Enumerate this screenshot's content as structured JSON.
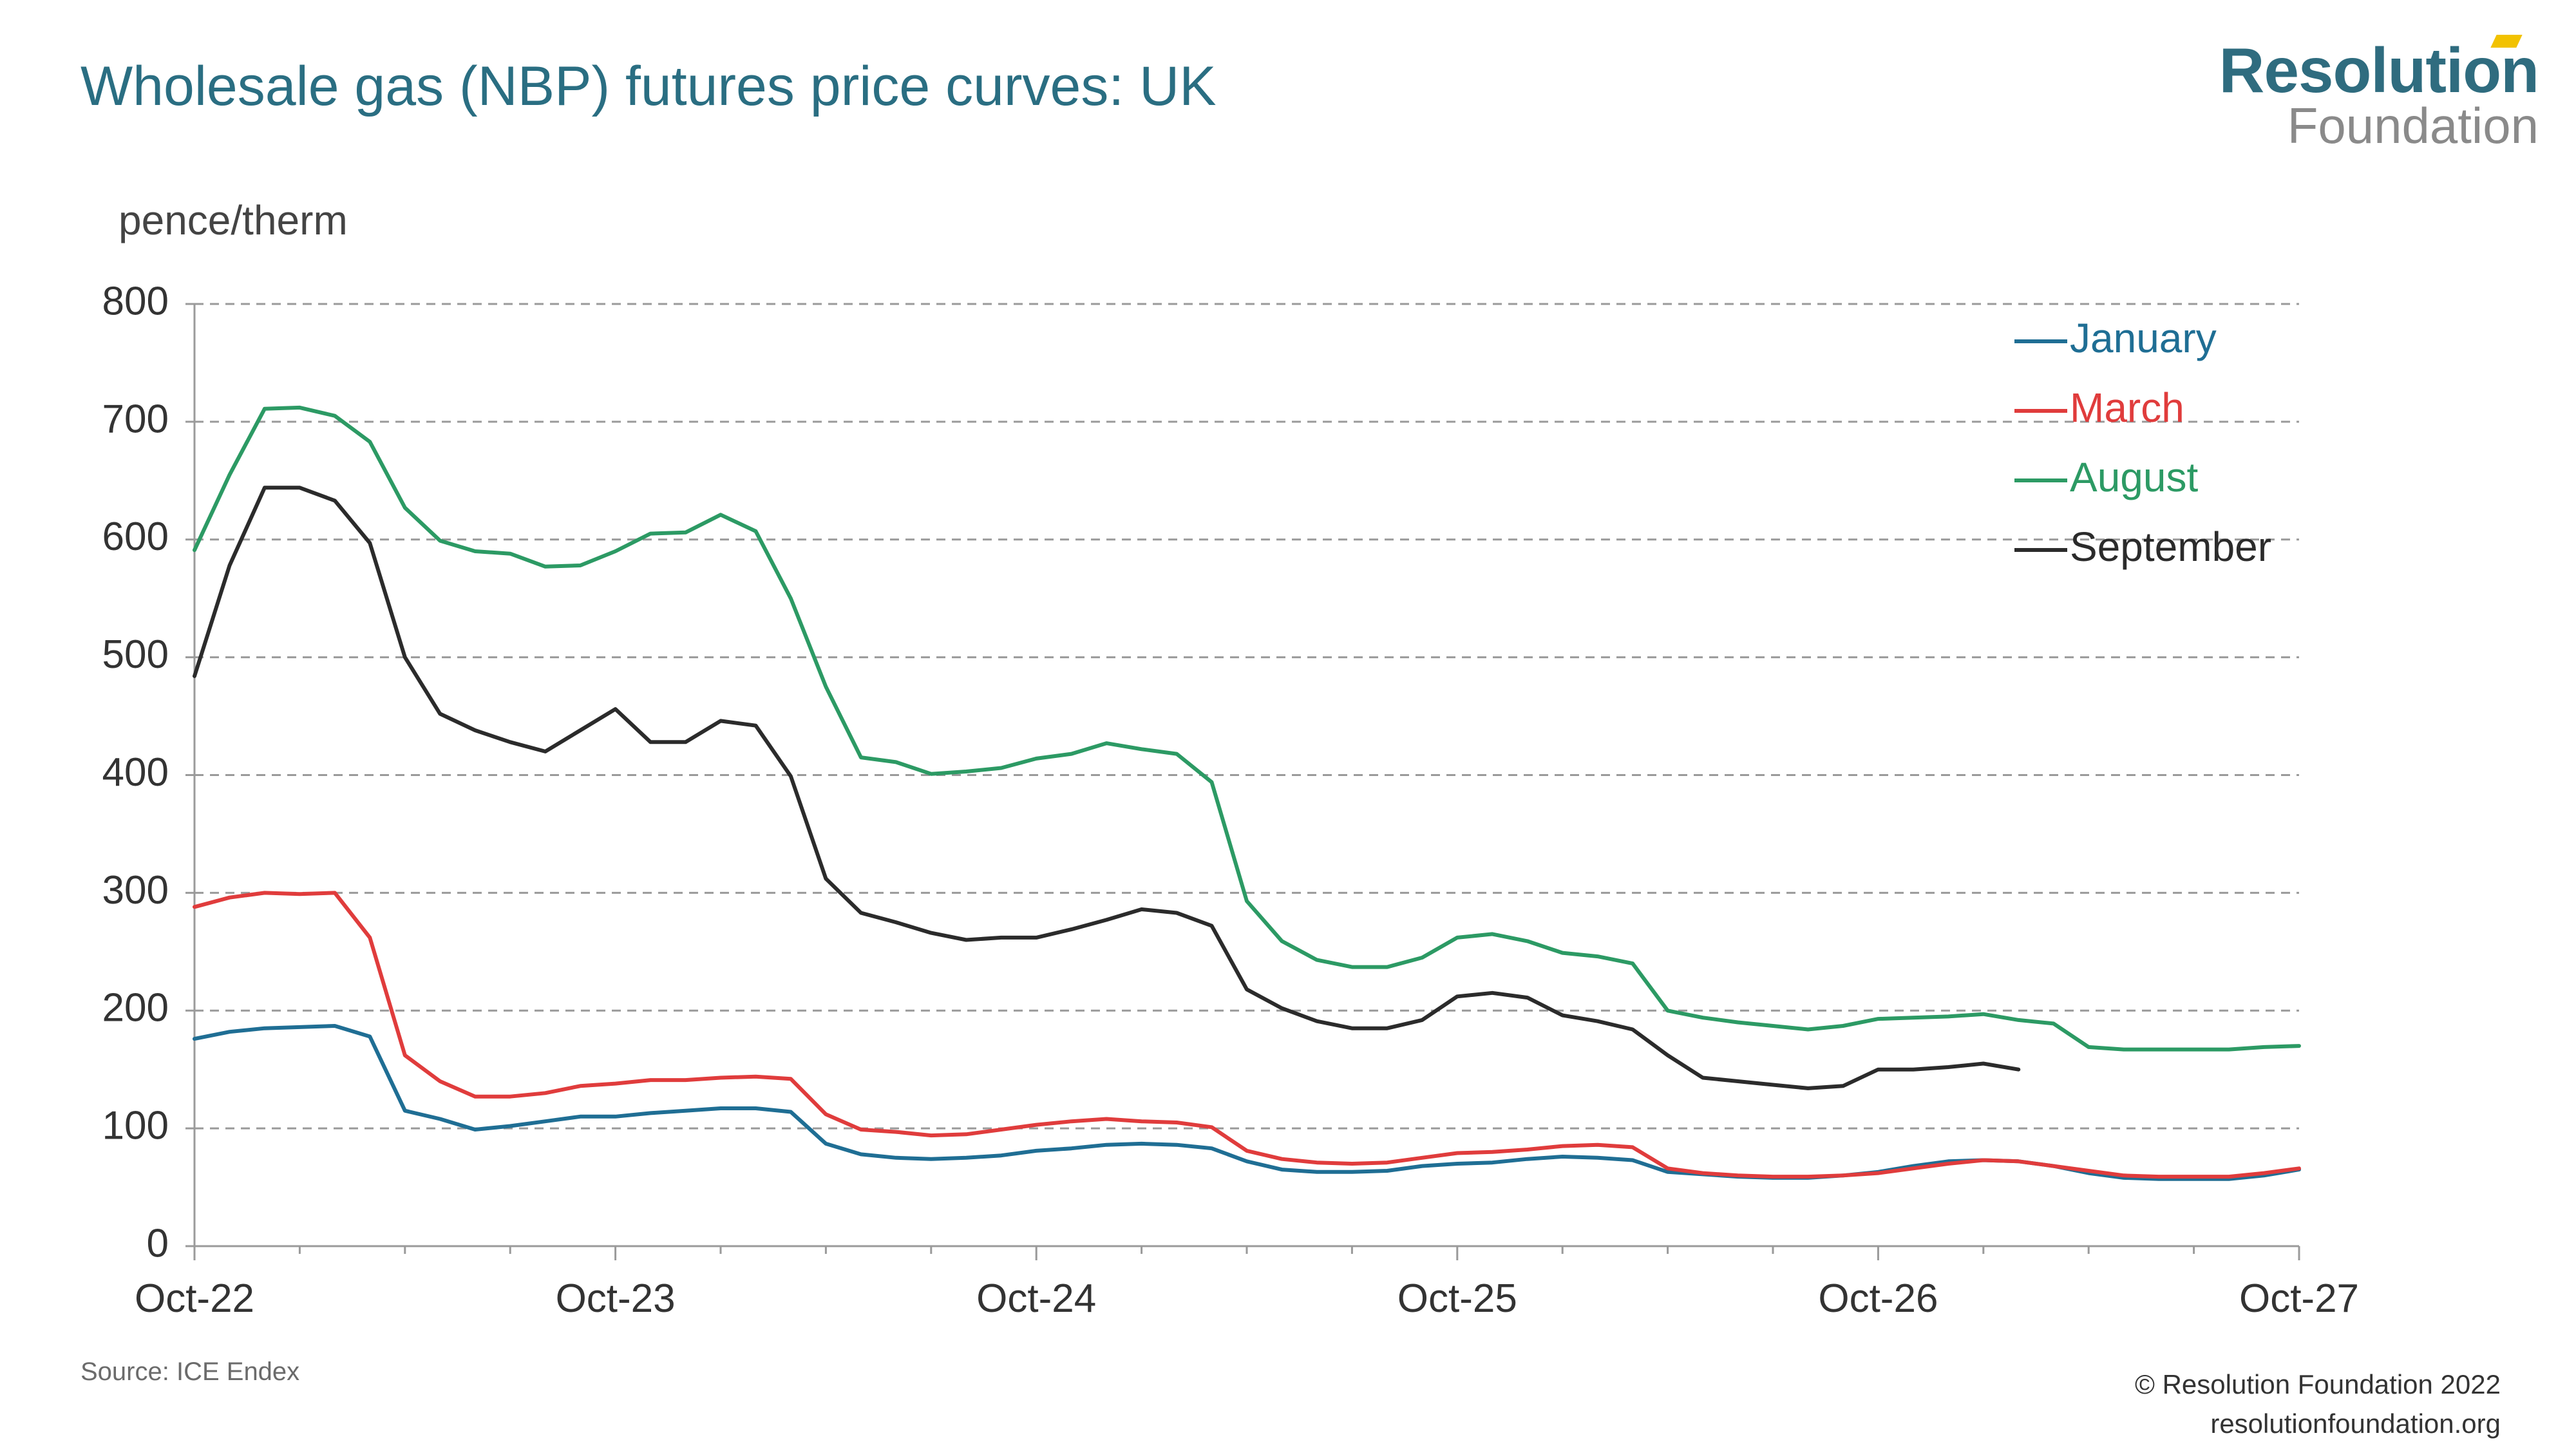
{
  "header": {
    "title": "Wholesale gas (NBP) futures price curves: UK",
    "logo_line1": "Resolution",
    "logo_line2": "Foundation"
  },
  "footer": {
    "source": "Source: ICE Endex",
    "copyright": "© Resolution Foundation 2022",
    "website": "resolutionfoundation.org"
  },
  "chart_data": {
    "type": "line",
    "ylabel": "pence/therm",
    "ylim": [
      0,
      800
    ],
    "yticks": [
      0,
      100,
      200,
      300,
      400,
      500,
      600,
      700,
      800
    ],
    "xticks": [
      "Oct-22",
      "Oct-23",
      "Oct-24",
      "Oct-25",
      "Oct-26",
      "Oct-27"
    ],
    "x_unit": "months from Oct-22",
    "xlim": [
      0,
      60
    ],
    "grid": true,
    "legend_position": "top-right",
    "series": [
      {
        "name": "January",
        "color": "#1f6e94",
        "x": [
          0,
          1,
          2,
          3,
          4,
          5,
          6,
          7,
          8,
          9,
          10,
          11,
          12,
          13,
          14,
          15,
          16,
          17,
          18,
          19,
          20,
          21,
          22,
          23,
          24,
          25,
          26,
          27,
          28,
          29,
          30,
          31,
          32,
          33,
          34,
          35,
          36,
          37,
          38,
          39,
          40,
          41,
          42,
          43,
          44,
          45,
          46,
          47,
          48,
          49,
          50,
          51,
          52,
          53,
          54,
          55,
          56,
          57,
          58,
          59,
          60
        ],
        "values": [
          176,
          182,
          185,
          186,
          187,
          178,
          115,
          108,
          99,
          102,
          106,
          110,
          110,
          113,
          115,
          117,
          117,
          114,
          87,
          78,
          75,
          74,
          75,
          77,
          81,
          83,
          86,
          87,
          86,
          83,
          72,
          65,
          63,
          63,
          64,
          68,
          70,
          71,
          74,
          76,
          75,
          73,
          63,
          61,
          59,
          58,
          58,
          60,
          63,
          68,
          72,
          73,
          72,
          68,
          62,
          58,
          57,
          57,
          57,
          60,
          65
        ]
      },
      {
        "name": "March",
        "color": "#e03c3c",
        "x": [
          0,
          1,
          2,
          3,
          4,
          5,
          6,
          7,
          8,
          9,
          10,
          11,
          12,
          13,
          14,
          15,
          16,
          17,
          18,
          19,
          20,
          21,
          22,
          23,
          24,
          25,
          26,
          27,
          28,
          29,
          30,
          31,
          32,
          33,
          34,
          35,
          36,
          37,
          38,
          39,
          40,
          41,
          42,
          43,
          44,
          45,
          46,
          47,
          48,
          49,
          50,
          51,
          52,
          53,
          54,
          55,
          56,
          57,
          58,
          59,
          60
        ],
        "values": [
          288,
          296,
          300,
          299,
          300,
          262,
          162,
          140,
          127,
          127,
          130,
          136,
          138,
          141,
          141,
          143,
          144,
          142,
          112,
          99,
          97,
          94,
          95,
          99,
          103,
          106,
          108,
          106,
          105,
          101,
          81,
          74,
          71,
          70,
          71,
          75,
          79,
          80,
          82,
          85,
          86,
          84,
          66,
          62,
          60,
          59,
          59,
          60,
          62,
          66,
          70,
          73,
          72,
          68,
          64,
          60,
          59,
          59,
          59,
          62,
          66
        ]
      },
      {
        "name": "August",
        "color": "#2c9a64",
        "x": [
          0,
          1,
          2,
          3,
          4,
          5,
          6,
          7,
          8,
          9,
          10,
          11,
          12,
          13,
          14,
          15,
          16,
          17,
          18,
          19,
          20,
          21,
          22,
          23,
          24,
          25,
          26,
          27,
          28,
          29,
          30,
          31,
          32,
          33,
          34,
          35,
          36,
          37,
          38,
          39,
          40,
          41,
          42,
          43,
          44,
          45,
          46,
          47,
          48,
          49,
          50,
          51,
          52,
          53,
          54,
          55,
          56,
          57,
          58,
          59,
          60
        ],
        "values": [
          591,
          655,
          711,
          712,
          705,
          683,
          627,
          599,
          590,
          588,
          577,
          578,
          590,
          605,
          606,
          621,
          607,
          550,
          475,
          415,
          411,
          401,
          403,
          406,
          414,
          418,
          427,
          422,
          418,
          394,
          293,
          259,
          243,
          237,
          237,
          245,
          262,
          265,
          259,
          249,
          246,
          240,
          200,
          194,
          190,
          187,
          184,
          187,
          193,
          194,
          195,
          197,
          192,
          189,
          169,
          167,
          167,
          167,
          167,
          169,
          170
        ]
      },
      {
        "name": "September",
        "color": "#2b2b2b",
        "x": [
          0,
          1,
          2,
          3,
          4,
          5,
          6,
          7,
          8,
          9,
          10,
          11,
          12,
          13,
          14,
          15,
          16,
          17,
          18,
          19,
          20,
          21,
          22,
          23,
          24,
          25,
          26,
          27,
          28,
          29,
          30,
          31,
          32,
          33,
          34,
          35,
          36,
          37,
          38,
          39,
          40,
          41,
          42,
          43,
          44,
          45,
          46,
          47,
          48,
          49,
          50,
          51,
          52
        ],
        "values": [
          484,
          578,
          644,
          644,
          633,
          597,
          500,
          452,
          438,
          428,
          420,
          438,
          456,
          428,
          428,
          446,
          442,
          399,
          312,
          283,
          275,
          266,
          260,
          262,
          262,
          269,
          277,
          286,
          283,
          272,
          218,
          202,
          191,
          185,
          185,
          192,
          212,
          215,
          211,
          196,
          191,
          184,
          162,
          143,
          140,
          137,
          134,
          136,
          150,
          150,
          152,
          155,
          150
        ]
      }
    ]
  }
}
